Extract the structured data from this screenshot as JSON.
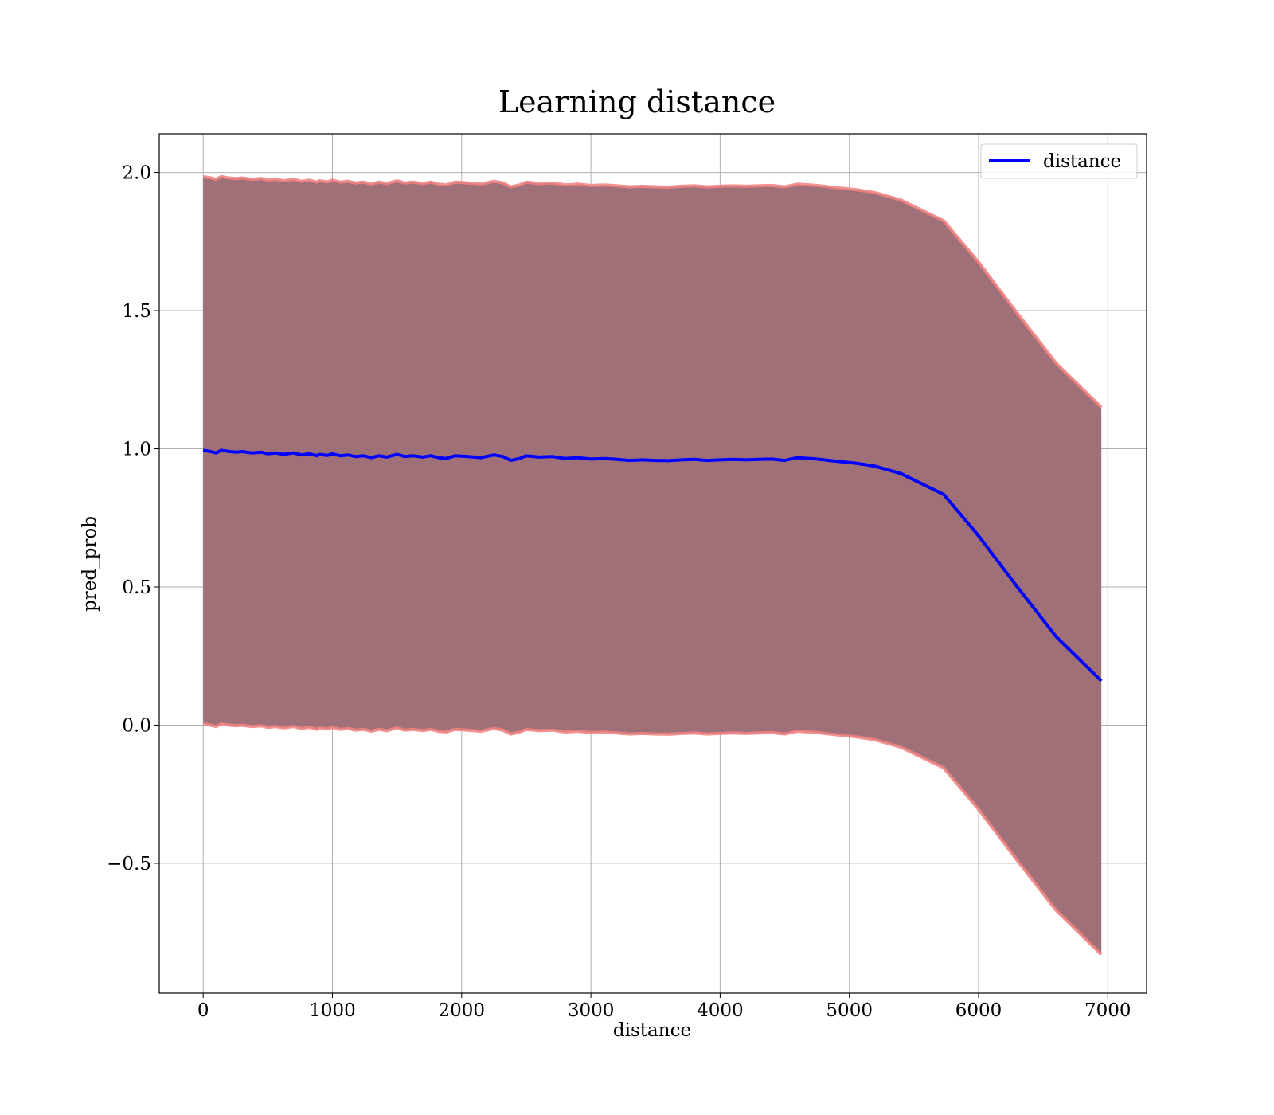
{
  "chart_data": {
    "type": "area",
    "title": "Learning distance",
    "xlabel": "distance",
    "ylabel": "pred_prob",
    "xlim": [
      -340,
      7300
    ],
    "ylim": [
      -0.97,
      2.14
    ],
    "xticks": [
      0,
      1000,
      2000,
      3000,
      4000,
      5000,
      6000,
      7000
    ],
    "yticks": [
      -0.5,
      0.0,
      0.5,
      1.0,
      1.5,
      2.0
    ],
    "xtick_labels": [
      "0",
      "1000",
      "2000",
      "3000",
      "4000",
      "5000",
      "6000",
      "7000"
    ],
    "ytick_labels": [
      "−0.5",
      "0.0",
      "0.5",
      "1.0",
      "1.5",
      "2.0"
    ],
    "grid": true,
    "legend": {
      "placement": "top-right",
      "entries": [
        "distance"
      ]
    },
    "colors": {
      "line": "#0000ff",
      "band": "#a07078",
      "band_edge": "#f08080"
    },
    "series": [
      {
        "name": "distance",
        "x": [
          0,
          60,
          100,
          140,
          200,
          260,
          300,
          380,
          450,
          500,
          560,
          620,
          700,
          760,
          820,
          880,
          900,
          960,
          1000,
          1060,
          1120,
          1180,
          1240,
          1300,
          1360,
          1420,
          1500,
          1560,
          1620,
          1700,
          1760,
          1820,
          1880,
          1950,
          2050,
          2150,
          2250,
          2320,
          2380,
          2450,
          2500,
          2600,
          2700,
          2800,
          2900,
          3000,
          3100,
          3200,
          3300,
          3400,
          3500,
          3600,
          3700,
          3800,
          3900,
          4000,
          4100,
          4200,
          4300,
          4400,
          4500,
          4600,
          4750,
          4900,
          5050,
          5200,
          5400,
          5730,
          6000,
          6300,
          6600,
          6950
        ],
        "y": [
          0.995,
          0.99,
          0.985,
          0.995,
          0.99,
          0.988,
          0.99,
          0.985,
          0.988,
          0.982,
          0.985,
          0.98,
          0.985,
          0.978,
          0.982,
          0.975,
          0.98,
          0.976,
          0.982,
          0.975,
          0.978,
          0.972,
          0.975,
          0.968,
          0.975,
          0.97,
          0.98,
          0.972,
          0.975,
          0.97,
          0.975,
          0.968,
          0.965,
          0.975,
          0.972,
          0.968,
          0.978,
          0.972,
          0.958,
          0.965,
          0.975,
          0.97,
          0.972,
          0.965,
          0.968,
          0.963,
          0.965,
          0.962,
          0.958,
          0.96,
          0.958,
          0.957,
          0.96,
          0.962,
          0.958,
          0.96,
          0.962,
          0.96,
          0.962,
          0.963,
          0.958,
          0.968,
          0.963,
          0.955,
          0.948,
          0.937,
          0.91,
          0.835,
          0.685,
          0.5,
          0.32,
          0.16
        ],
        "upper": [
          1.985,
          1.98,
          1.975,
          1.985,
          1.98,
          1.978,
          1.98,
          1.975,
          1.978,
          1.972,
          1.975,
          1.97,
          1.975,
          1.968,
          1.972,
          1.965,
          1.97,
          1.966,
          1.972,
          1.965,
          1.968,
          1.962,
          1.965,
          1.958,
          1.965,
          1.96,
          1.97,
          1.962,
          1.965,
          1.96,
          1.965,
          1.958,
          1.955,
          1.965,
          1.962,
          1.958,
          1.968,
          1.962,
          1.948,
          1.955,
          1.965,
          1.96,
          1.962,
          1.955,
          1.958,
          1.953,
          1.955,
          1.952,
          1.948,
          1.95,
          1.948,
          1.947,
          1.95,
          1.952,
          1.948,
          1.95,
          1.952,
          1.95,
          1.952,
          1.953,
          1.948,
          1.958,
          1.953,
          1.945,
          1.938,
          1.927,
          1.9,
          1.825,
          1.675,
          1.49,
          1.31,
          1.15
        ],
        "lower": [
          0.005,
          0.0,
          -0.005,
          0.005,
          0.0,
          -0.002,
          0.0,
          -0.005,
          -0.002,
          -0.008,
          -0.005,
          -0.01,
          -0.005,
          -0.012,
          -0.008,
          -0.015,
          -0.01,
          -0.014,
          -0.008,
          -0.015,
          -0.012,
          -0.018,
          -0.015,
          -0.022,
          -0.015,
          -0.02,
          -0.01,
          -0.018,
          -0.015,
          -0.02,
          -0.015,
          -0.022,
          -0.025,
          -0.015,
          -0.018,
          -0.022,
          -0.012,
          -0.018,
          -0.032,
          -0.025,
          -0.015,
          -0.02,
          -0.018,
          -0.025,
          -0.022,
          -0.027,
          -0.025,
          -0.028,
          -0.032,
          -0.03,
          -0.032,
          -0.033,
          -0.03,
          -0.028,
          -0.032,
          -0.03,
          -0.028,
          -0.03,
          -0.028,
          -0.027,
          -0.032,
          -0.022,
          -0.027,
          -0.035,
          -0.042,
          -0.053,
          -0.08,
          -0.155,
          -0.305,
          -0.49,
          -0.67,
          -0.83
        ]
      }
    ]
  }
}
